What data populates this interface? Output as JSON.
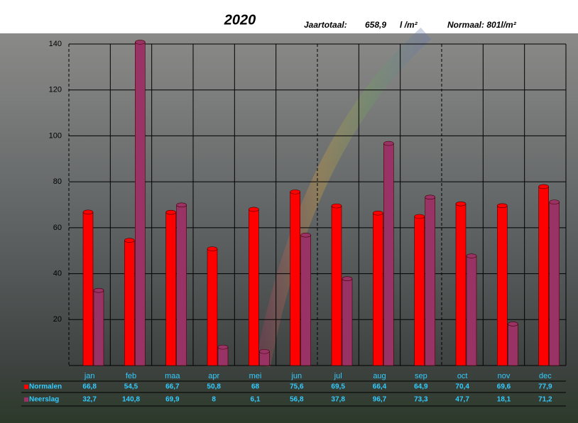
{
  "chart_data": {
    "type": "bar",
    "title": "2020",
    "annotations": [
      "Jaartotaal:",
      "658,9",
      "l /m²",
      "Normaal: 801l/m²"
    ],
    "categories": [
      "jan",
      "feb",
      "maa",
      "apr",
      "mei",
      "jun",
      "jul",
      "aug",
      "sep",
      "oct",
      "nov",
      "dec"
    ],
    "series": [
      {
        "name": "Normalen",
        "color": "#ff0000",
        "values": [
          66.8,
          54.5,
          66.7,
          50.8,
          68,
          75.6,
          69.5,
          66.4,
          64.9,
          70.4,
          69.6,
          77.9
        ],
        "value_labels": [
          "66,8",
          "54,5",
          "66,7",
          "50,8",
          "68",
          "75,6",
          "69,5",
          "66,4",
          "64,9",
          "70,4",
          "69,6",
          "77,9"
        ]
      },
      {
        "name": "Neerslag",
        "color": "#993366",
        "values": [
          32.7,
          140.8,
          69.9,
          8,
          6.1,
          56.8,
          37.8,
          96.7,
          73.3,
          47.7,
          18.1,
          71.2
        ],
        "value_labels": [
          "32,7",
          "140,8",
          "69,9",
          "8",
          "6,1",
          "56,8",
          "37,8",
          "96,7",
          "73,3",
          "47,7",
          "18,1",
          "71,2"
        ]
      }
    ],
    "ylim": [
      0,
      140
    ],
    "yticks": [
      20,
      40,
      60,
      80,
      100,
      120,
      140
    ],
    "grid": true
  }
}
